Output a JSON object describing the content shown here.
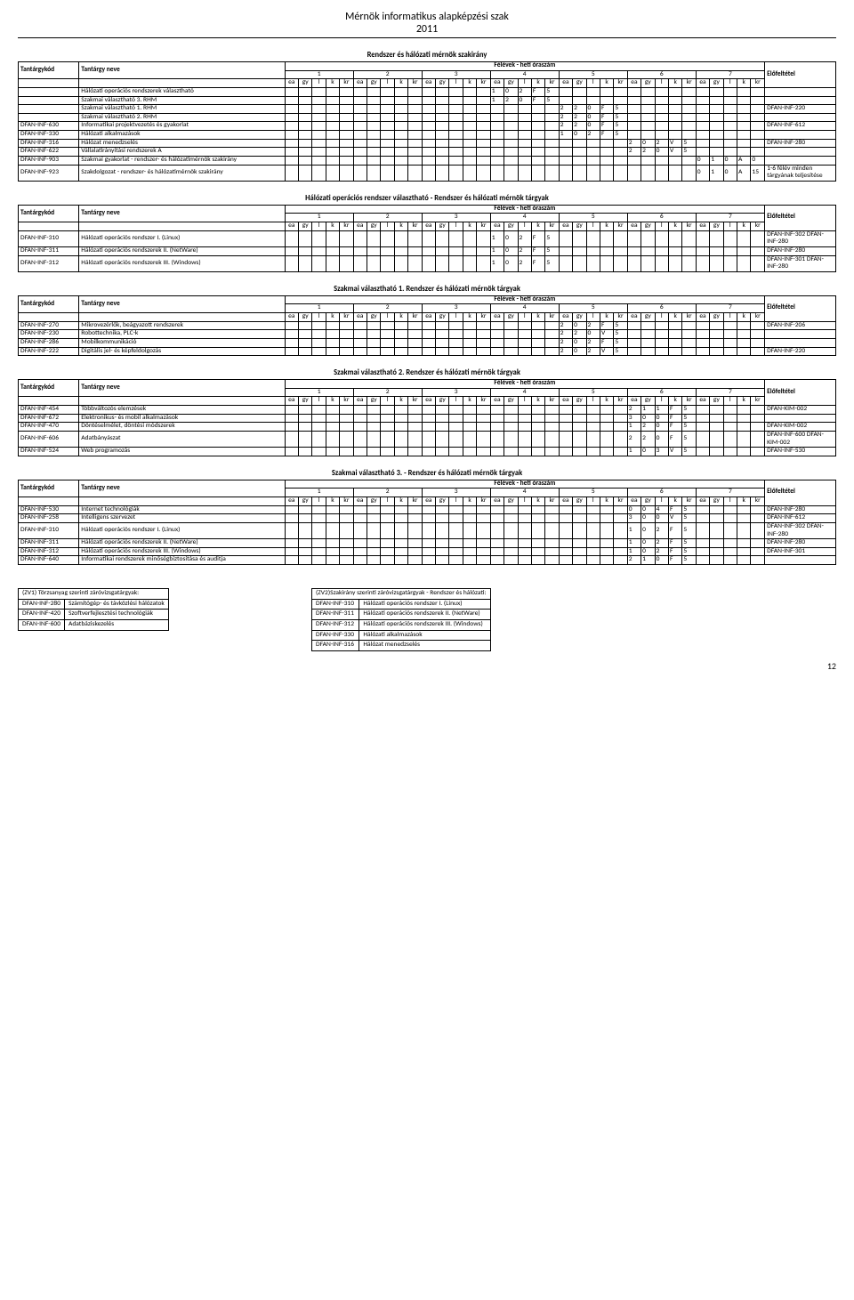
{
  "page": {
    "title": "Mérnök informatikus alapképzési szak",
    "year": "2011",
    "pagenum": "12"
  },
  "colKeys": [
    "ea",
    "gy",
    "l",
    "k",
    "kr"
  ],
  "precond": "Előfeltétel",
  "feHdr": "Félévek - heti óraszám",
  "kodHdr": "Tantárgykód",
  "nameHdr": "Tantárgy neve",
  "sections": [
    {
      "title": "Rendszer és hálózati mérnök szakirány",
      "wrapPre": true,
      "rows": [
        {
          "code": "",
          "name": "Hálózati operációs rendszerek választható",
          "sem": 4,
          "vals": [
            "1",
            "0",
            "2",
            "F",
            "5"
          ]
        },
        {
          "code": "",
          "name": "Szakmai választható 3. RHM",
          "sem": 4,
          "vals": [
            "1",
            "2",
            "0",
            "F",
            "5"
          ]
        },
        {
          "code": "",
          "name": "Szakmai választható 1. RHM",
          "sem": 5,
          "vals": [
            "2",
            "2",
            "0",
            "F",
            "5"
          ],
          "pre": "DFAN-INF-220"
        },
        {
          "code": "",
          "name": "Szakmai választható 2. RHM",
          "sem": 5,
          "vals": [
            "2",
            "2",
            "0",
            "F",
            "5"
          ]
        },
        {
          "code": "DFAN-INF-630",
          "name": "Informatikai projektvezetés és gyakorlat",
          "sem": 5,
          "vals": [
            "2",
            "2",
            "0",
            "F",
            "5"
          ],
          "pre": "DFAN-INF-612"
        },
        {
          "code": "DFAN-INF-330",
          "name": "Hálózati alkalmazások",
          "sem": 5,
          "vals": [
            "1",
            "0",
            "2",
            "F",
            "5"
          ]
        },
        {
          "code": "DFAN-INF-316",
          "name": "Hálózat menedzselés",
          "sem": 6,
          "vals": [
            "2",
            "0",
            "2",
            "V",
            "5"
          ],
          "pre": "DFAN-INF-280"
        },
        {
          "code": "DFAN-INF-622",
          "name": "Vállalatirányítási rendszerek A",
          "sem": 6,
          "vals": [
            "2",
            "2",
            "0",
            "V",
            "5"
          ]
        },
        {
          "code": "DFAN-INF-903",
          "name": "Szakmai gyakorlat - rendszer- és hálózatimérnök szakirány",
          "sem": 7,
          "vals": [
            "0",
            "1",
            "0",
            "A",
            "0"
          ]
        },
        {
          "code": "DFAN-INF-923",
          "name": "Szakdolgozat - rendszer- és hálózatimérnök szakirány",
          "sem": 7,
          "vals": [
            "0",
            "1",
            "0",
            "A",
            "15"
          ],
          "pre": "1-6 félév minden tárgyának teljesítése"
        }
      ]
    },
    {
      "title": "Hálózati operációs rendszer választható - Rendszer és hálózati mérnök tárgyak",
      "wrapPre": true,
      "rows": [
        {
          "code": "DFAN-INF-310",
          "name": "Hálózati operációs rendszer I. (Linux)",
          "sem": 4,
          "vals": [
            "1",
            "0",
            "2",
            "F",
            "5"
          ],
          "pre": "DFAN-INF-302 DFAN-INF-280"
        },
        {
          "code": "DFAN-INF-311",
          "name": "Hálózati operációs rendszerek II. (NetWare)",
          "sem": 4,
          "vals": [
            "1",
            "0",
            "2",
            "F",
            "5"
          ],
          "pre": "DFAN-INF-280"
        },
        {
          "code": "DFAN-INF-312",
          "name": "Hálózati operációs rendszerek III. (Windows)",
          "sem": 4,
          "vals": [
            "1",
            "0",
            "2",
            "F",
            "5"
          ],
          "pre": "DFAN-INF-301 DFAN-INF-280"
        }
      ]
    },
    {
      "title": "Szakmai választható 1. Rendszer és hálózati mérnök tárgyak",
      "rows": [
        {
          "code": "DFAN-INF-270",
          "name": "Mikrovezérlők, beágyazott rendszerek",
          "sem": 5,
          "vals": [
            "2",
            "0",
            "2",
            "F",
            "5"
          ],
          "pre": "DFAN-INF-206"
        },
        {
          "code": "DFAN-INF-230",
          "name": "Robottechnika, PLC-k",
          "sem": 5,
          "vals": [
            "2",
            "2",
            "0",
            "V",
            "5"
          ]
        },
        {
          "code": "DFAN-INF-286",
          "name": "Mobilkommunikáció",
          "sem": 5,
          "vals": [
            "2",
            "0",
            "2",
            "F",
            "5"
          ]
        },
        {
          "code": "DFAN-INF-222",
          "name": "Digitális jel- és képfeldolgozás",
          "sem": 5,
          "vals": [
            "2",
            "0",
            "2",
            "V",
            "5"
          ],
          "pre": "DFAN-INF-220"
        }
      ]
    },
    {
      "title": "Szakmai választható 2. Rendszer és hálózati mérnök tárgyak",
      "wrapPre": true,
      "rows": [
        {
          "code": "DFAN-INF-454",
          "name": "Többváltozós elemzések",
          "sem": 6,
          "vals": [
            "2",
            "1",
            "1",
            "F",
            "5"
          ],
          "pre": "DFAN-KIM-002"
        },
        {
          "code": "DFAN-INF-672",
          "name": "Elektronikus- és mobil alkalmazások",
          "sem": 6,
          "vals": [
            "3",
            "0",
            "0",
            "F",
            "5"
          ]
        },
        {
          "code": "DFAN-INF-470",
          "name": "Döntéselmélet, döntési módszerek",
          "sem": 6,
          "vals": [
            "1",
            "2",
            "0",
            "F",
            "5"
          ],
          "pre": "DFAN-KIM-002"
        },
        {
          "code": "DFAN-INF-606",
          "name": "Adatbányászat",
          "sem": 6,
          "vals": [
            "2",
            "2",
            "0",
            "F",
            "5"
          ],
          "pre": "DFAN-INF-600 DFAN-KIM-002"
        },
        {
          "code": "DFAN-INF-524",
          "name": "Web programozás",
          "sem": 6,
          "vals": [
            "1",
            "0",
            "3",
            "V",
            "5"
          ],
          "pre": "DFAN-INF-530"
        }
      ]
    },
    {
      "title": "Szakmai választható 3. - Rendszer és hálózati mérnök tárgyak",
      "wrapPre": true,
      "rows": [
        {
          "code": "DFAN-INF-530",
          "name": "Internet technológiák",
          "sem": 6,
          "vals": [
            "0",
            "0",
            "4",
            "F",
            "5"
          ],
          "pre": "DFAN-INF-280"
        },
        {
          "code": "DFAN-INF-258",
          "name": "Intelligens szervezet",
          "sem": 6,
          "vals": [
            "3",
            "0",
            "0",
            "V",
            "5"
          ],
          "pre": "DFAN-INF-612"
        },
        {
          "code": "DFAN-INF-310",
          "name": "Hálózati operációs rendszer I. (Linux)",
          "sem": 6,
          "vals": [
            "1",
            "0",
            "2",
            "F",
            "5"
          ],
          "pre": "DFAN-INF-302 DFAN-INF-280"
        },
        {
          "code": "DFAN-INF-311",
          "name": "Hálózati operációs rendszerek II. (NetWare)",
          "sem": 6,
          "vals": [
            "1",
            "0",
            "2",
            "F",
            "5"
          ],
          "pre": "DFAN-INF-280"
        },
        {
          "code": "DFAN-INF-312",
          "name": "Hálózati operációs rendszerek III. (Windows)",
          "sem": 6,
          "vals": [
            "1",
            "0",
            "2",
            "F",
            "5"
          ],
          "pre": "DFAN-INF-301"
        },
        {
          "code": "DFAN-INF-640",
          "name": "Informatikai rendszerek minőségbiztosítása és auditja",
          "sem": 6,
          "vals": [
            "2",
            "1",
            "0",
            "F",
            "5"
          ]
        }
      ]
    }
  ],
  "zv1": {
    "title": "(ZV1) Törzsanyag szerinti záróvizsgatárgyak:",
    "rows": [
      [
        "DFAN-INF-280",
        "Számítógép- és távközlési hálózatok"
      ],
      [
        "DFAN-INF-420",
        "Szoftverfejlesztési technológiák"
      ],
      [
        "DFAN-INF-600",
        "Adatbáziskezelés"
      ]
    ]
  },
  "zv2": {
    "title": "(ZV2)Szakirány szerinti záróvizsgatárgyak - Rendszer és hálózati:",
    "rows": [
      [
        "DFAN-INF-310",
        "Hálózati operációs rendszer I. (Linux)"
      ],
      [
        "DFAN-INF-311",
        "Hálózati operációs rendszerek II. (NetWare)"
      ],
      [
        "DFAN-INF-312",
        "Hálózati operációs rendszerek III. (Windows)"
      ],
      [
        "DFAN-INF-330",
        "Hálózati alkalmazások"
      ],
      [
        "DFAN-INF-316",
        "Hálózat menedzselés"
      ]
    ]
  }
}
